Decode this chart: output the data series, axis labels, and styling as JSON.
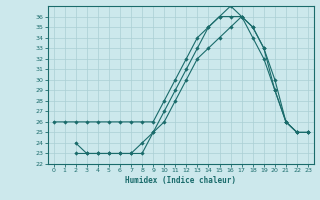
{
  "xlabel": "Humidex (Indice chaleur)",
  "bg_color": "#cce8ec",
  "line_color": "#1a6b6b",
  "grid_color": "#aacfd4",
  "xlim": [
    -0.5,
    23.5
  ],
  "ylim": [
    22,
    37
  ],
  "yticks": [
    22,
    23,
    24,
    25,
    26,
    27,
    28,
    29,
    30,
    31,
    32,
    33,
    34,
    35,
    36
  ],
  "xticks": [
    0,
    1,
    2,
    3,
    4,
    5,
    6,
    7,
    8,
    9,
    10,
    11,
    12,
    13,
    14,
    15,
    16,
    17,
    18,
    19,
    20,
    21,
    22,
    23
  ],
  "line1_x": [
    0,
    1,
    2,
    3,
    4,
    5,
    6,
    7,
    8,
    9,
    10,
    11,
    12,
    13,
    14,
    15,
    16,
    17,
    18,
    19,
    20,
    21,
    22,
    23
  ],
  "line1_y": [
    26,
    26,
    26,
    26,
    26,
    26,
    26,
    26,
    26,
    26,
    28,
    30,
    32,
    34,
    35,
    36,
    36,
    36,
    35,
    33,
    30,
    26,
    25,
    25
  ],
  "line2_x": [
    2,
    3,
    4,
    5,
    6,
    7,
    8,
    9,
    10,
    11,
    12,
    13,
    14,
    15,
    16,
    17,
    18,
    19,
    20,
    21,
    22,
    23
  ],
  "line2_y": [
    24,
    23,
    23,
    23,
    23,
    23,
    23,
    25,
    27,
    29,
    31,
    33,
    35,
    36,
    37,
    36,
    35,
    33,
    29,
    26,
    25,
    25
  ],
  "line3_x": [
    2,
    3,
    4,
    5,
    6,
    7,
    8,
    9,
    10,
    11,
    12,
    13,
    14,
    15,
    16,
    17,
    18,
    19,
    20,
    21,
    22,
    23
  ],
  "line3_y": [
    23,
    23,
    23,
    23,
    23,
    23,
    24,
    25,
    26,
    28,
    30,
    32,
    33,
    34,
    35,
    36,
    34,
    32,
    29,
    26,
    25,
    25
  ]
}
